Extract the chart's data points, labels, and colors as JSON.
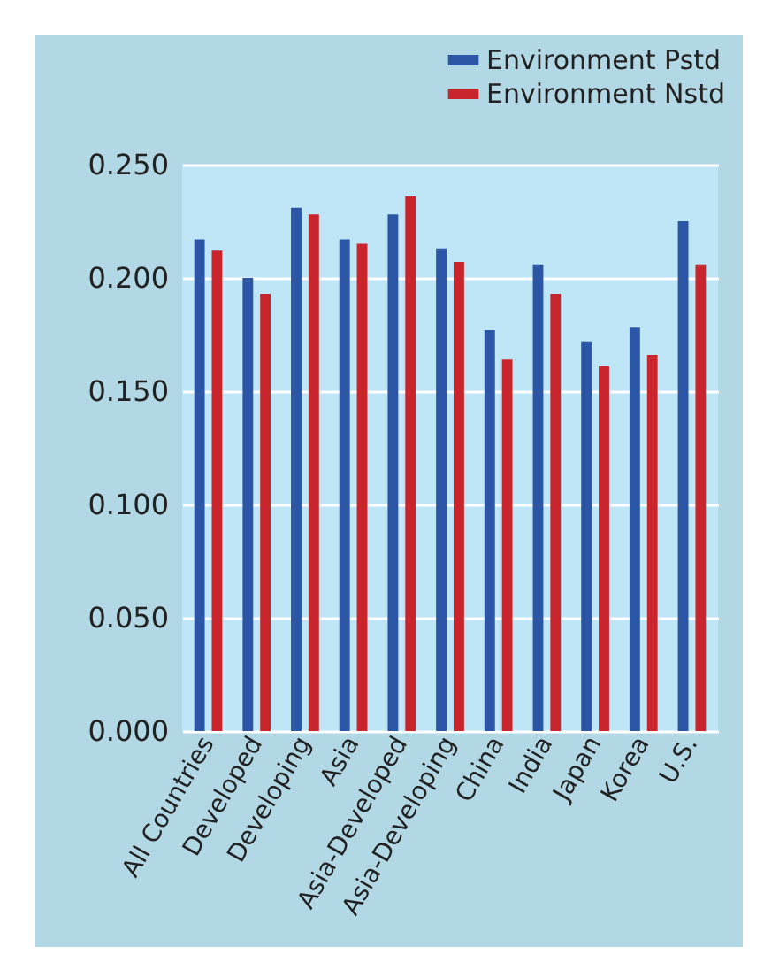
{
  "chart_data": {
    "type": "bar",
    "categories": [
      "All Countries",
      "Developed",
      "Developing",
      "Asia",
      "Asia-Developed",
      "Asia-Developing",
      "China",
      "India",
      "Japan",
      "Korea",
      "U.S."
    ],
    "series": [
      {
        "name": "Environment Pstd",
        "color": "#2b56a5",
        "values": [
          0.217,
          0.2,
          0.231,
          0.217,
          0.228,
          0.213,
          0.177,
          0.206,
          0.172,
          0.178,
          0.225
        ]
      },
      {
        "name": "Environment Nstd",
        "color": "#c9252c",
        "values": [
          0.212,
          0.193,
          0.228,
          0.215,
          0.236,
          0.207,
          0.164,
          0.193,
          0.161,
          0.166,
          0.206
        ]
      }
    ],
    "ylim": [
      0,
      0.25
    ],
    "yticks": [
      {
        "value": 0,
        "label": "0.000"
      },
      {
        "value": 0.05,
        "label": "0.050"
      },
      {
        "value": 0.1,
        "label": "0.100"
      },
      {
        "value": 0.15,
        "label": "0.150"
      },
      {
        "value": 0.2,
        "label": "0.200"
      },
      {
        "value": 0.25,
        "label": "0.250"
      }
    ],
    "grid": "y",
    "legend": "top right"
  }
}
